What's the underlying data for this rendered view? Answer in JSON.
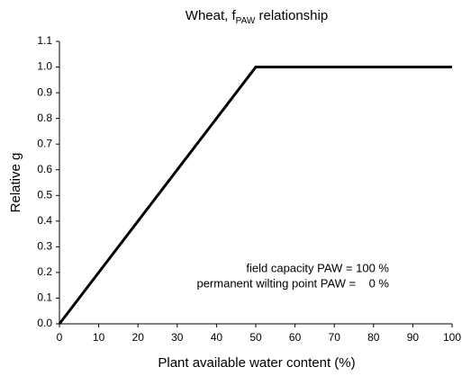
{
  "chart_data": {
    "type": "line",
    "title_parts": [
      "Wheat, f",
      "PAW",
      " relationship"
    ],
    "x_label": "Plant available water content (%)",
    "y_label": "Relative g",
    "annotations": [
      "field capacity PAW = 100 %",
      "permanent wilting point PAW =    0 %"
    ],
    "x": [
      0,
      50,
      100
    ],
    "series": [
      {
        "color": "#000000",
        "values": [
          0,
          1,
          1
        ]
      }
    ],
    "xlim": [
      0,
      100
    ],
    "xticks": [
      0,
      10,
      20,
      30,
      40,
      50,
      60,
      70,
      80,
      90,
      100
    ],
    "ylim": [
      0,
      1.1
    ],
    "yticks": [
      {
        "value": 0,
        "label": "0.0"
      },
      {
        "value": 0.1,
        "label": "0.1"
      },
      {
        "value": 0.2,
        "label": "0.2"
      },
      {
        "value": 0.3,
        "label": "0.3"
      },
      {
        "value": 0.4,
        "label": "0.4"
      },
      {
        "value": 0.5,
        "label": "0.5"
      },
      {
        "value": 0.6,
        "label": "0.6"
      },
      {
        "value": 0.7,
        "label": "0.7"
      },
      {
        "value": 0.8,
        "label": "0.8"
      },
      {
        "value": 0.9,
        "label": "0.9"
      },
      {
        "value": 1,
        "label": "1.0"
      },
      {
        "value": 1.1,
        "label": "1.1"
      }
    ],
    "grid": false
  }
}
